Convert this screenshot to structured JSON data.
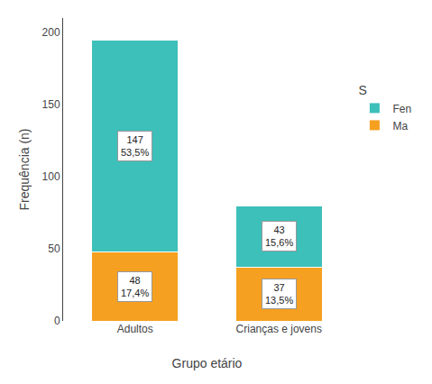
{
  "chart_data": {
    "type": "bar",
    "stacked": true,
    "categories": [
      "Adultos",
      "Crianças e jovens"
    ],
    "series": [
      {
        "name": "Ma",
        "color": "#F5A020",
        "values": [
          48,
          37
        ],
        "value_labels": [
          "48\n17,4%",
          "37\n13,5%"
        ]
      },
      {
        "name": "Fen",
        "color": "#3DBFBA",
        "values": [
          147,
          43
        ],
        "value_labels": [
          "147\n53,5%",
          "43\n15,6%"
        ]
      }
    ],
    "xlabel": "Grupo etário",
    "ylabel": "Frequência (n)",
    "legend_title": "S",
    "legend": "right",
    "ylim": [
      0,
      210
    ],
    "yticks": [
      0,
      50,
      100,
      150,
      200
    ],
    "grid": false,
    "data_labels": true
  }
}
